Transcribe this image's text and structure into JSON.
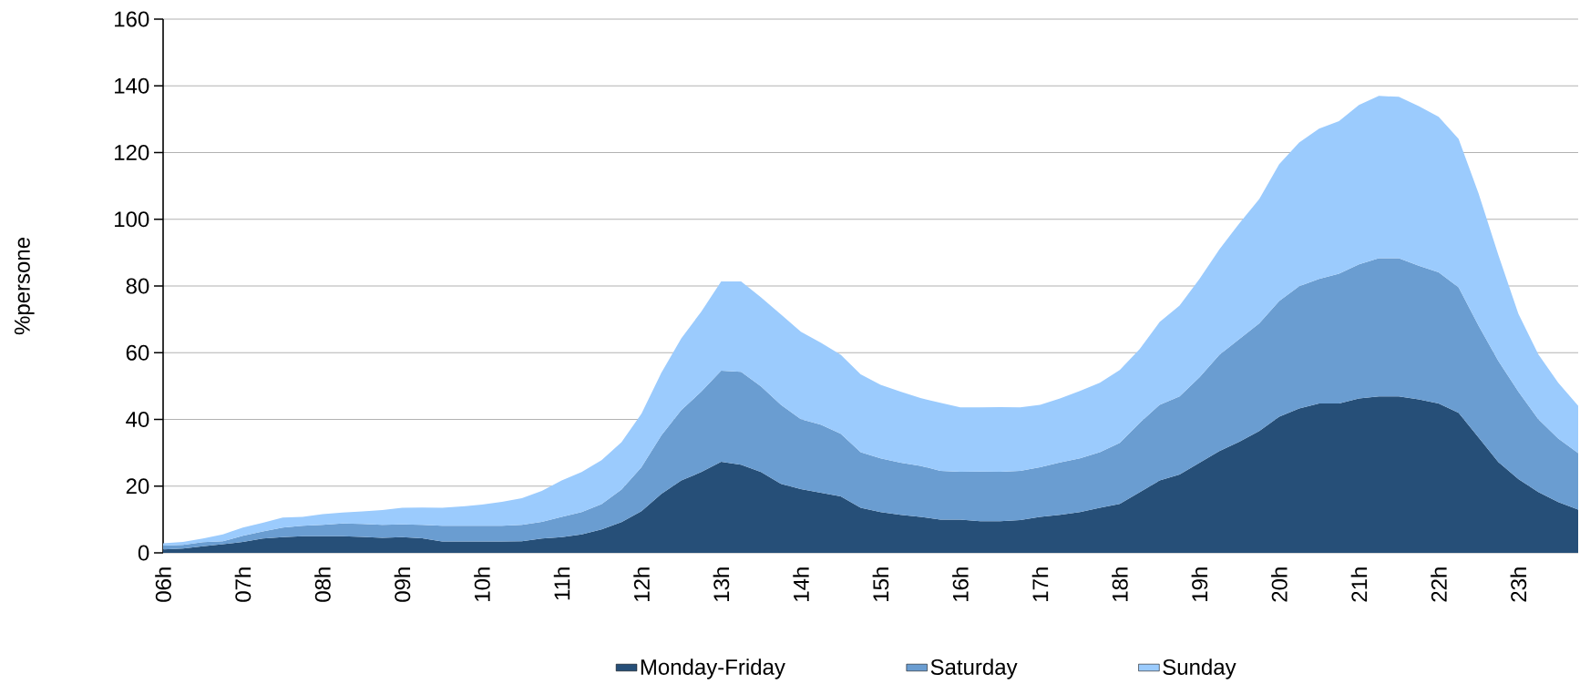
{
  "chart_data": {
    "type": "area",
    "stacked": true,
    "ylabel": "%persone",
    "categories": [
      "06h",
      null,
      null,
      null,
      "07h",
      null,
      null,
      null,
      "08h",
      null,
      null,
      null,
      "09h",
      null,
      null,
      null,
      "10h",
      null,
      null,
      null,
      "11h",
      null,
      null,
      null,
      "12h",
      null,
      null,
      null,
      "13h",
      null,
      null,
      null,
      "14h",
      null,
      null,
      null,
      "15h",
      null,
      null,
      null,
      "16h",
      null,
      null,
      null,
      "17h",
      null,
      null,
      null,
      "18h",
      null,
      null,
      null,
      "19h",
      null,
      null,
      null,
      "20h",
      null,
      null,
      null,
      "21h",
      null,
      null,
      null,
      "22h",
      null,
      null,
      null,
      "23h",
      null,
      null,
      null
    ],
    "ylim": [
      0,
      160
    ],
    "yticks": [
      0,
      20,
      40,
      60,
      80,
      100,
      120,
      140,
      160
    ],
    "grid": "y",
    "legend": "bottom",
    "series": [
      {
        "name": "Monday-Friday",
        "color": "#264f78",
        "values": [
          1.0,
          1.3,
          2.0,
          2.6,
          3.3,
          4.3,
          4.7,
          5.0,
          5.0,
          5.0,
          4.8,
          4.5,
          4.7,
          4.4,
          3.4,
          3.4,
          3.4,
          3.4,
          3.5,
          4.3,
          4.7,
          5.5,
          7.0,
          9.2,
          12.5,
          17.7,
          21.7,
          24.2,
          27.3,
          26.4,
          24.2,
          20.7,
          19.1,
          18.0,
          16.9,
          13.5,
          12.2,
          11.4,
          10.8,
          10.0,
          10.0,
          9.5,
          9.5,
          9.8,
          10.8,
          11.4,
          12.2,
          13.5,
          14.7,
          18.2,
          21.7,
          23.5,
          27.0,
          30.5,
          33.3,
          36.5,
          40.8,
          43.3,
          44.8,
          44.8,
          46.3,
          46.9,
          46.9,
          46.0,
          44.8,
          42.0,
          34.6,
          27.2,
          22.1,
          18.2,
          15.2,
          13.0
        ]
      },
      {
        "name": "Saturday",
        "color": "#6a9dd1",
        "values": [
          1.2,
          1.1,
          1.2,
          0.9,
          1.8,
          2.1,
          2.9,
          3.1,
          3.4,
          3.8,
          3.9,
          3.9,
          3.8,
          4.0,
          4.7,
          4.7,
          4.7,
          4.7,
          4.9,
          5.0,
          6.1,
          6.7,
          7.6,
          9.8,
          13.2,
          17.5,
          21.1,
          24.1,
          27.3,
          27.9,
          25.7,
          23.7,
          21.0,
          20.4,
          18.8,
          16.7,
          16.1,
          15.6,
          15.3,
          14.6,
          14.3,
          14.9,
          14.8,
          14.8,
          14.9,
          15.7,
          16.1,
          16.7,
          18.3,
          20.8,
          22.7,
          23.4,
          25.6,
          28.9,
          30.8,
          32.3,
          34.7,
          36.6,
          37.3,
          38.9,
          40.2,
          41.4,
          41.4,
          40.1,
          39.3,
          37.6,
          33.5,
          30.3,
          26.2,
          21.9,
          19.1,
          16.9
        ]
      },
      {
        "name": "Sunday",
        "color": "#9bcbfd",
        "values": [
          0.7,
          0.9,
          1.1,
          2.0,
          2.5,
          2.6,
          3.0,
          2.7,
          3.2,
          3.3,
          3.7,
          4.4,
          5.0,
          5.2,
          5.4,
          5.8,
          6.4,
          7.2,
          8.0,
          9.3,
          10.9,
          12.0,
          13.2,
          14.2,
          16.0,
          18.8,
          21.5,
          24.0,
          26.8,
          27.1,
          26.7,
          27.1,
          26.2,
          24.6,
          23.7,
          23.3,
          22.1,
          21.3,
          20.3,
          20.4,
          19.3,
          19.2,
          19.4,
          19.0,
          18.7,
          19.2,
          20.2,
          20.8,
          21.8,
          22.1,
          24.8,
          27.2,
          29.5,
          31.6,
          34.7,
          37.3,
          41.0,
          43.1,
          45.1,
          45.7,
          47.8,
          48.7,
          48.4,
          47.8,
          46.6,
          44.5,
          39.7,
          31.7,
          23.4,
          19.4,
          16.7,
          14.2
        ]
      }
    ]
  }
}
